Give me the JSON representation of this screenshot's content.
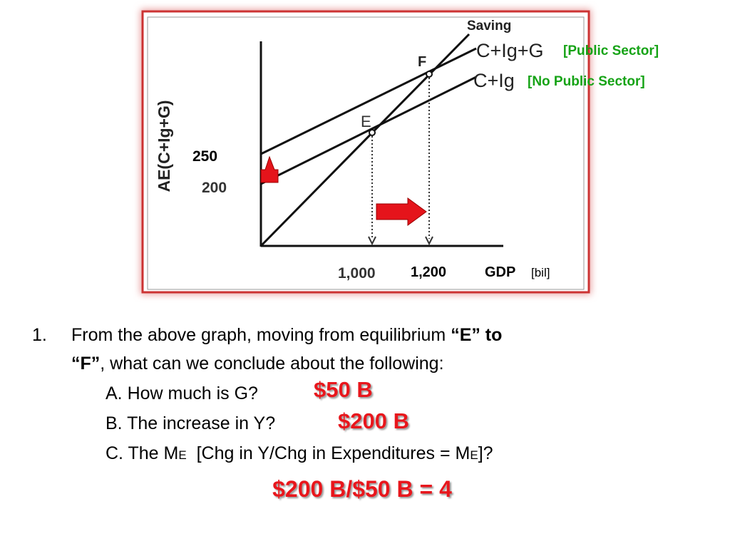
{
  "graph": {
    "saving_label": "Saving",
    "top_line_label": "C+Ig+G",
    "top_line_note": "[Public Sector]",
    "bottom_line_label": "C+Ig",
    "bottom_line_note": "[No Public Sector]",
    "point_f": "F",
    "point_e": "E",
    "y_axis_label": "AE(C+Ig+G)",
    "y_labels": [
      "250",
      "200"
    ],
    "x_labels": [
      "1,000",
      "1,200"
    ],
    "x_axis_label": "GDP",
    "x_axis_unit": "[bil]"
  },
  "question": {
    "number": "1.",
    "text_start": "From the above graph, moving from equilibrium ",
    "bold_1": "“E” to",
    "bold_2": "“F”",
    "text_end": ", what can we conclude about the following:",
    "items": [
      {
        "text": "A. How much is G?",
        "answer": "$50 B"
      },
      {
        "text": "B. The increase in Y?",
        "answer": "$200 B"
      },
      {
        "parts": [
          "C. The M",
          "E",
          "  [Chg in Y/Chg in Expenditures = M",
          "E",
          "]?"
        ]
      }
    ],
    "result": "$200 B/$50 B = 4"
  }
}
